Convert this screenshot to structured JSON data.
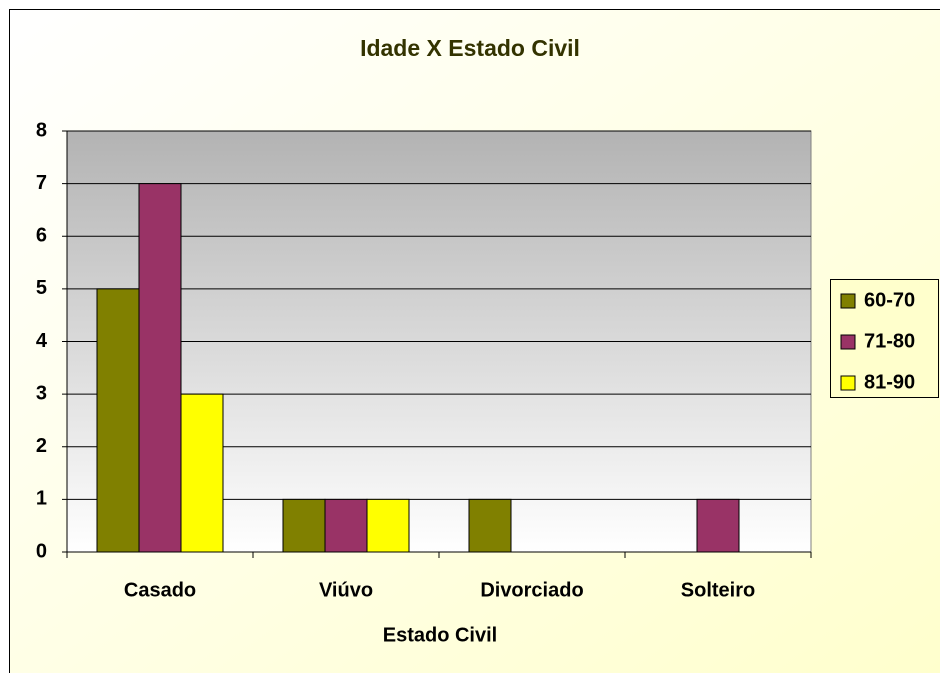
{
  "chart_data": {
    "type": "bar",
    "title": "Idade X Estado Civil",
    "x_label": "Estado Civil",
    "categories": [
      "Casado",
      "Viúvo",
      "Divorciado",
      "Solteiro"
    ],
    "series": [
      {
        "name": "60-70",
        "color": "#808000",
        "values": [
          5,
          1,
          1,
          0
        ]
      },
      {
        "name": "71-80",
        "color": "#993366",
        "values": [
          7,
          1,
          0,
          1
        ]
      },
      {
        "name": "81-90",
        "color": "#ffff00",
        "values": [
          3,
          1,
          0,
          0
        ]
      }
    ],
    "ylim": [
      0,
      8
    ],
    "yticks": [
      0,
      1,
      2,
      3,
      4,
      5,
      6,
      7,
      8
    ],
    "grid": true,
    "legend": "right"
  }
}
